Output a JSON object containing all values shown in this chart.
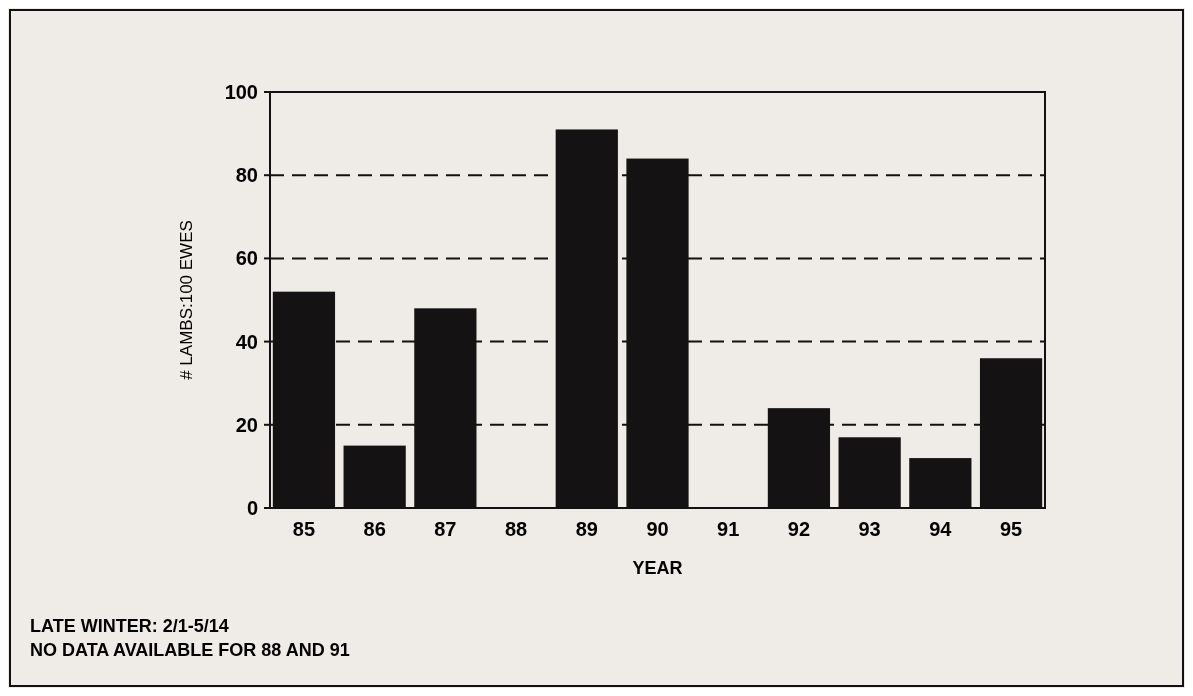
{
  "chart_data": {
    "type": "bar",
    "xlabel": "YEAR",
    "ylabel": "# LAMBS:100 EWES",
    "categories": [
      "85",
      "86",
      "87",
      "88",
      "89",
      "90",
      "91",
      "92",
      "93",
      "94",
      "95"
    ],
    "values": [
      52,
      15,
      48,
      null,
      91,
      84,
      null,
      24,
      17,
      12,
      36
    ],
    "color": "#141213",
    "ylim": [
      0,
      100
    ],
    "yticks": [
      0,
      20,
      40,
      60,
      80,
      100
    ],
    "grid": "y",
    "annotations": [
      "LATE WINTER: 2/1-5/14",
      "NO DATA AVAILABLE FOR 88 AND 91"
    ]
  }
}
